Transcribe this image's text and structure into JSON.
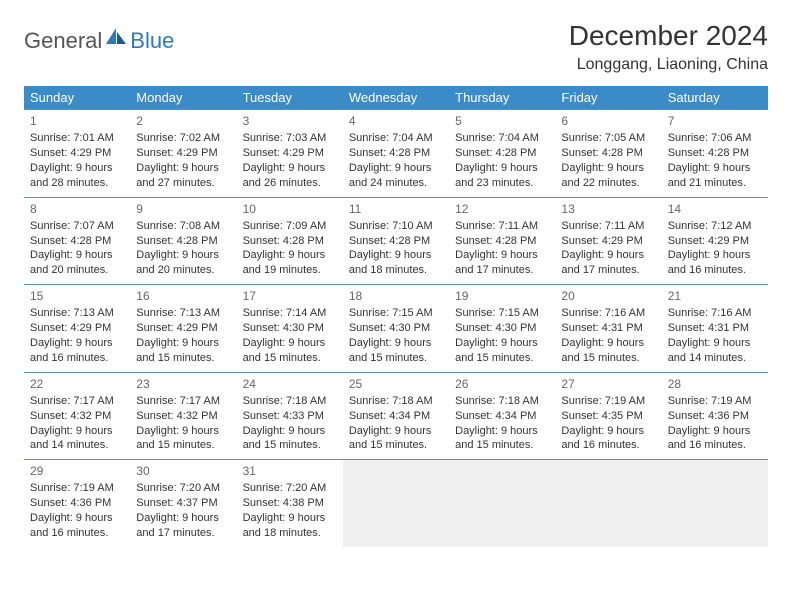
{
  "logo": {
    "text1": "General",
    "text2": "Blue"
  },
  "title": "December 2024",
  "location": "Longgang, Liaoning, China",
  "colors": {
    "header_bg": "#3b8bc9",
    "header_text": "#ffffff",
    "border": "#5a8fb8",
    "empty_bg": "#f0f0f0",
    "logo_gray": "#555555",
    "logo_blue": "#2a7abf"
  },
  "day_headers": [
    "Sunday",
    "Monday",
    "Tuesday",
    "Wednesday",
    "Thursday",
    "Friday",
    "Saturday"
  ],
  "weeks": [
    [
      {
        "n": "1",
        "sr": "Sunrise: 7:01 AM",
        "ss": "Sunset: 4:29 PM",
        "d1": "Daylight: 9 hours",
        "d2": "and 28 minutes."
      },
      {
        "n": "2",
        "sr": "Sunrise: 7:02 AM",
        "ss": "Sunset: 4:29 PM",
        "d1": "Daylight: 9 hours",
        "d2": "and 27 minutes."
      },
      {
        "n": "3",
        "sr": "Sunrise: 7:03 AM",
        "ss": "Sunset: 4:29 PM",
        "d1": "Daylight: 9 hours",
        "d2": "and 26 minutes."
      },
      {
        "n": "4",
        "sr": "Sunrise: 7:04 AM",
        "ss": "Sunset: 4:28 PM",
        "d1": "Daylight: 9 hours",
        "d2": "and 24 minutes."
      },
      {
        "n": "5",
        "sr": "Sunrise: 7:04 AM",
        "ss": "Sunset: 4:28 PM",
        "d1": "Daylight: 9 hours",
        "d2": "and 23 minutes."
      },
      {
        "n": "6",
        "sr": "Sunrise: 7:05 AM",
        "ss": "Sunset: 4:28 PM",
        "d1": "Daylight: 9 hours",
        "d2": "and 22 minutes."
      },
      {
        "n": "7",
        "sr": "Sunrise: 7:06 AM",
        "ss": "Sunset: 4:28 PM",
        "d1": "Daylight: 9 hours",
        "d2": "and 21 minutes."
      }
    ],
    [
      {
        "n": "8",
        "sr": "Sunrise: 7:07 AM",
        "ss": "Sunset: 4:28 PM",
        "d1": "Daylight: 9 hours",
        "d2": "and 20 minutes."
      },
      {
        "n": "9",
        "sr": "Sunrise: 7:08 AM",
        "ss": "Sunset: 4:28 PM",
        "d1": "Daylight: 9 hours",
        "d2": "and 20 minutes."
      },
      {
        "n": "10",
        "sr": "Sunrise: 7:09 AM",
        "ss": "Sunset: 4:28 PM",
        "d1": "Daylight: 9 hours",
        "d2": "and 19 minutes."
      },
      {
        "n": "11",
        "sr": "Sunrise: 7:10 AM",
        "ss": "Sunset: 4:28 PM",
        "d1": "Daylight: 9 hours",
        "d2": "and 18 minutes."
      },
      {
        "n": "12",
        "sr": "Sunrise: 7:11 AM",
        "ss": "Sunset: 4:28 PM",
        "d1": "Daylight: 9 hours",
        "d2": "and 17 minutes."
      },
      {
        "n": "13",
        "sr": "Sunrise: 7:11 AM",
        "ss": "Sunset: 4:29 PM",
        "d1": "Daylight: 9 hours",
        "d2": "and 17 minutes."
      },
      {
        "n": "14",
        "sr": "Sunrise: 7:12 AM",
        "ss": "Sunset: 4:29 PM",
        "d1": "Daylight: 9 hours",
        "d2": "and 16 minutes."
      }
    ],
    [
      {
        "n": "15",
        "sr": "Sunrise: 7:13 AM",
        "ss": "Sunset: 4:29 PM",
        "d1": "Daylight: 9 hours",
        "d2": "and 16 minutes."
      },
      {
        "n": "16",
        "sr": "Sunrise: 7:13 AM",
        "ss": "Sunset: 4:29 PM",
        "d1": "Daylight: 9 hours",
        "d2": "and 15 minutes."
      },
      {
        "n": "17",
        "sr": "Sunrise: 7:14 AM",
        "ss": "Sunset: 4:30 PM",
        "d1": "Daylight: 9 hours",
        "d2": "and 15 minutes."
      },
      {
        "n": "18",
        "sr": "Sunrise: 7:15 AM",
        "ss": "Sunset: 4:30 PM",
        "d1": "Daylight: 9 hours",
        "d2": "and 15 minutes."
      },
      {
        "n": "19",
        "sr": "Sunrise: 7:15 AM",
        "ss": "Sunset: 4:30 PM",
        "d1": "Daylight: 9 hours",
        "d2": "and 15 minutes."
      },
      {
        "n": "20",
        "sr": "Sunrise: 7:16 AM",
        "ss": "Sunset: 4:31 PM",
        "d1": "Daylight: 9 hours",
        "d2": "and 15 minutes."
      },
      {
        "n": "21",
        "sr": "Sunrise: 7:16 AM",
        "ss": "Sunset: 4:31 PM",
        "d1": "Daylight: 9 hours",
        "d2": "and 14 minutes."
      }
    ],
    [
      {
        "n": "22",
        "sr": "Sunrise: 7:17 AM",
        "ss": "Sunset: 4:32 PM",
        "d1": "Daylight: 9 hours",
        "d2": "and 14 minutes."
      },
      {
        "n": "23",
        "sr": "Sunrise: 7:17 AM",
        "ss": "Sunset: 4:32 PM",
        "d1": "Daylight: 9 hours",
        "d2": "and 15 minutes."
      },
      {
        "n": "24",
        "sr": "Sunrise: 7:18 AM",
        "ss": "Sunset: 4:33 PM",
        "d1": "Daylight: 9 hours",
        "d2": "and 15 minutes."
      },
      {
        "n": "25",
        "sr": "Sunrise: 7:18 AM",
        "ss": "Sunset: 4:34 PM",
        "d1": "Daylight: 9 hours",
        "d2": "and 15 minutes."
      },
      {
        "n": "26",
        "sr": "Sunrise: 7:18 AM",
        "ss": "Sunset: 4:34 PM",
        "d1": "Daylight: 9 hours",
        "d2": "and 15 minutes."
      },
      {
        "n": "27",
        "sr": "Sunrise: 7:19 AM",
        "ss": "Sunset: 4:35 PM",
        "d1": "Daylight: 9 hours",
        "d2": "and 16 minutes."
      },
      {
        "n": "28",
        "sr": "Sunrise: 7:19 AM",
        "ss": "Sunset: 4:36 PM",
        "d1": "Daylight: 9 hours",
        "d2": "and 16 minutes."
      }
    ],
    [
      {
        "n": "29",
        "sr": "Sunrise: 7:19 AM",
        "ss": "Sunset: 4:36 PM",
        "d1": "Daylight: 9 hours",
        "d2": "and 16 minutes."
      },
      {
        "n": "30",
        "sr": "Sunrise: 7:20 AM",
        "ss": "Sunset: 4:37 PM",
        "d1": "Daylight: 9 hours",
        "d2": "and 17 minutes."
      },
      {
        "n": "31",
        "sr": "Sunrise: 7:20 AM",
        "ss": "Sunset: 4:38 PM",
        "d1": "Daylight: 9 hours",
        "d2": "and 18 minutes."
      },
      null,
      null,
      null,
      null
    ]
  ]
}
